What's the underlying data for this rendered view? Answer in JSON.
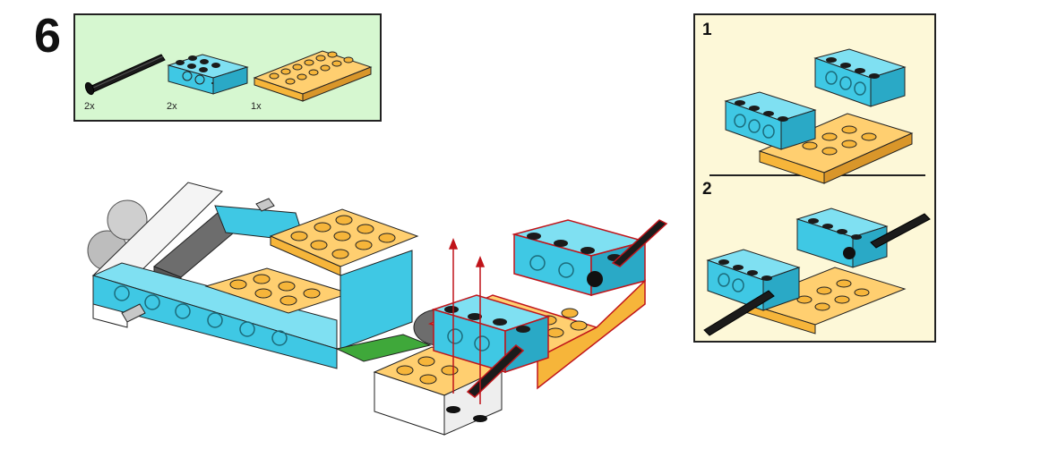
{
  "step": {
    "number": "6"
  },
  "parts": [
    {
      "name": "axle",
      "quantity": "2x"
    },
    {
      "name": "technic-beam-1x4",
      "quantity": "2x"
    },
    {
      "name": "plate-2x6",
      "quantity": "1x"
    }
  ],
  "substeps": [
    {
      "number": "1"
    },
    {
      "number": "2"
    }
  ],
  "colors": {
    "parts_panel": "#d6f7d0",
    "substep_panel": "#fdf8d8",
    "azure": "#3fc8e4",
    "orange": "#f6b53a",
    "black": "#1b1b1b",
    "gray": "#6d6d6d",
    "light_gray": "#c8c8c8",
    "white": "#ffffff",
    "arrow": "#c0141a",
    "green": "#3fa83a"
  }
}
